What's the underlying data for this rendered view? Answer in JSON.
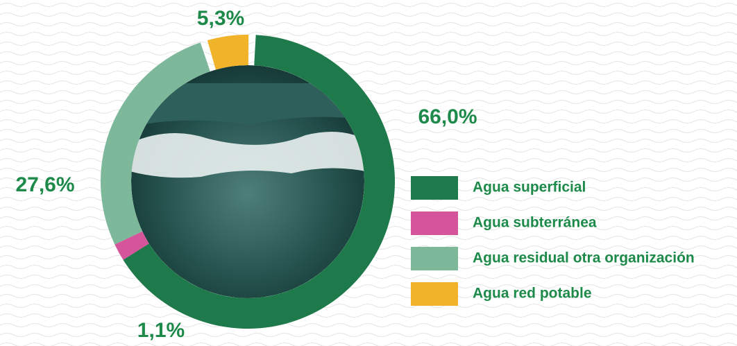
{
  "chart_data": {
    "type": "pie",
    "categories": [
      "Agua superficial",
      "Agua subterránea",
      "Agua residual otra organización",
      "Agua red potable"
    ],
    "values": [
      66.0,
      1.1,
      27.6,
      5.3
    ],
    "value_labels": [
      "66,0%",
      "1,1%",
      "27,6%",
      "5,3%"
    ],
    "colors": [
      "#1e7a4a",
      "#d4559a",
      "#7db89b",
      "#f0b32a"
    ]
  }
}
